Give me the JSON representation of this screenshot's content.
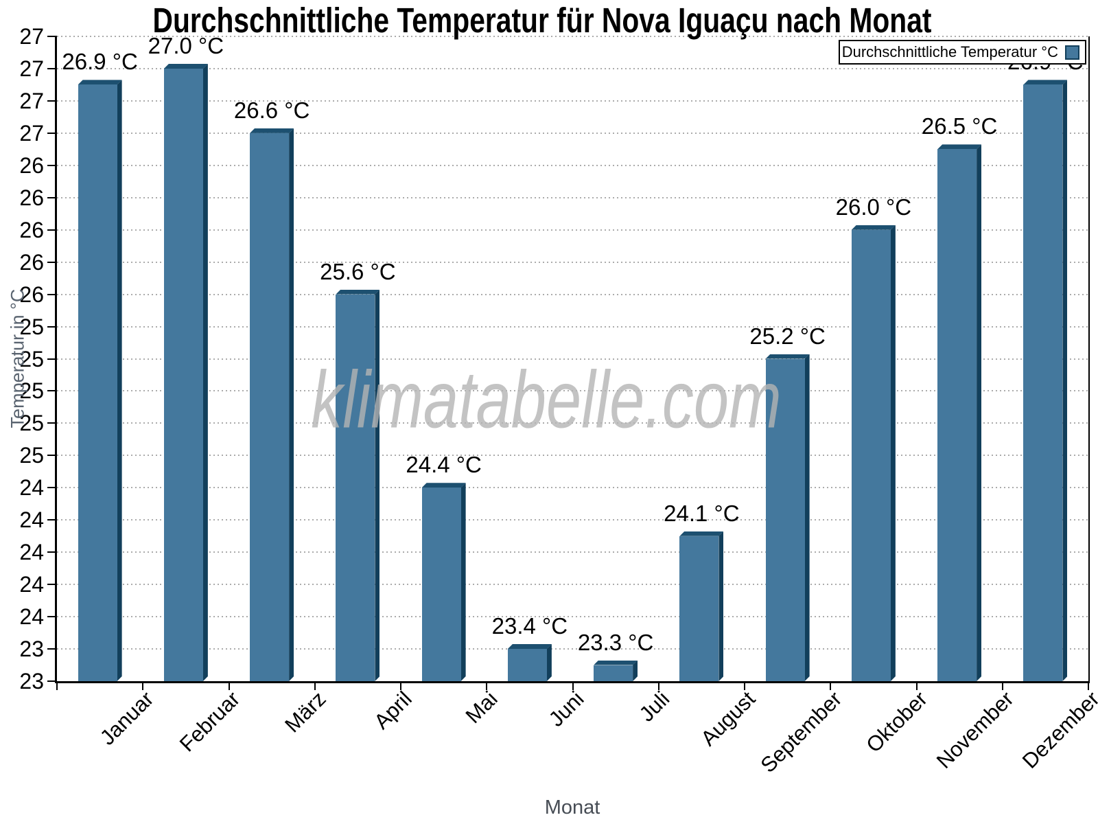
{
  "chart_data": {
    "type": "bar",
    "title": "Durchschnittliche Temperatur für Nova Iguaçu nach Monat",
    "xlabel": "Monat",
    "ylabel": "Temperatur in °C",
    "legend": {
      "label": "Durchschnittliche Temperatur °C",
      "position": "top-right"
    },
    "categories": [
      "Januar",
      "Februar",
      "März",
      "April",
      "Mai",
      "Juni",
      "Juli",
      "August",
      "September",
      "Oktober",
      "November",
      "Dezember"
    ],
    "values": [
      26.9,
      27.0,
      26.6,
      25.6,
      24.4,
      23.4,
      23.3,
      24.1,
      25.2,
      26.0,
      26.5,
      26.9
    ],
    "value_unit": "°C",
    "value_label_format": "{value} °C",
    "ylim": [
      23.2,
      27.2
    ],
    "ytick_step": 0.2,
    "ytick_labels_rounded_to_integer": true,
    "grid": "horizontal-dotted",
    "watermark": "klimatabelle.com",
    "colors": {
      "bar_front": "#44789D",
      "bar_top": "#1D5070",
      "bar_side": "#123F5B",
      "axis": "#000000",
      "gridline": "#ABABAB",
      "axis_title_gray": "#5A6470",
      "watermark_gray": "#B4B4B4",
      "background": "#FFFFFF"
    }
  }
}
